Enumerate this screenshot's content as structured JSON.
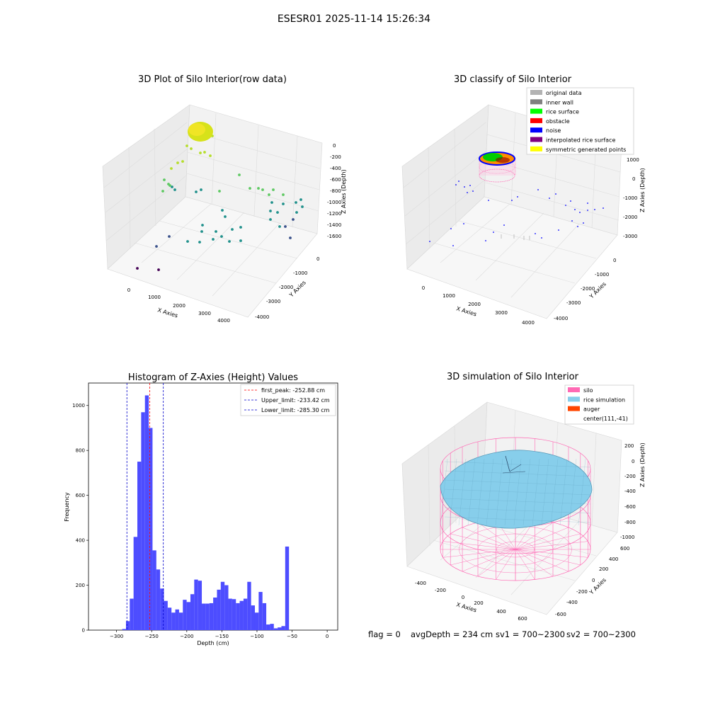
{
  "suptitle": "ESESR01 2025-11-14 15:26:34",
  "panels": {
    "p1": {
      "title": "3D Plot of Silo Interior(row data)",
      "xlabel": "X Axies",
      "ylabel": "Y Axies",
      "zlabel": "Z Axies (Depth)",
      "xticks": [
        "0",
        "1000",
        "2000",
        "3000",
        "4000"
      ],
      "yticks": [
        "0",
        "-1000",
        "-2000",
        "-3000",
        "-4000"
      ],
      "zticks": [
        "0",
        "-200",
        "-400",
        "-600",
        "-800",
        "-1000",
        "-1200",
        "-1400",
        "-1600"
      ]
    },
    "p2": {
      "title": "3D classify of Silo Interior",
      "xlabel": "X Axies",
      "ylabel": "Y Axies",
      "zlabel": "Z Axies (Depth)",
      "xticks": [
        "0",
        "1000",
        "2000",
        "3000",
        "4000"
      ],
      "yticks": [
        "0",
        "-1000",
        "-2000",
        "-3000",
        "-4000"
      ],
      "zticks": [
        "1000",
        "0",
        "-1000",
        "-2000",
        "-3000"
      ],
      "legend": [
        {
          "label": "original data",
          "color": "#b3b3b3"
        },
        {
          "label": "inner wall",
          "color": "#808080"
        },
        {
          "label": "rice surface",
          "color": "#00ff00"
        },
        {
          "label": "obstacle",
          "color": "#ff0000"
        },
        {
          "label": "noise",
          "color": "#0000ff"
        },
        {
          "label": "interpolated rice surface",
          "color": "#800080"
        },
        {
          "label": "symmetric generated points",
          "color": "#ffff00"
        }
      ]
    },
    "p4": {
      "title": "3D simulation of Silo Interior",
      "xlabel": "X Axies",
      "ylabel": "Y Axies",
      "zlabel": "Z Axies (Depth)",
      "xticks": [
        "-400",
        "-200",
        "0",
        "200",
        "400",
        "600"
      ],
      "yticks": [
        "600",
        "400",
        "200",
        "0",
        "-200",
        "-400",
        "-600"
      ],
      "zticks": [
        "200",
        "0",
        "-200",
        "-400",
        "-600",
        "-800",
        "-1000"
      ],
      "legend": [
        {
          "label": "silo",
          "color": "#ff69b4"
        },
        {
          "label": "rice simulation",
          "color": "#87ceeb"
        },
        {
          "label": "auger",
          "color": "#ff4500"
        },
        {
          "label": "center(111,-41)",
          "color": ""
        }
      ],
      "status": {
        "flag": "flag = 0",
        "avg": "avgDepth = 234 cm",
        "sv1": "sv1 = 700~2300",
        "sv2": "sv2 = 700~2300"
      }
    }
  },
  "colors": {
    "hist_bar": "#4d4dff",
    "peak_line": "#ff0000",
    "limit_line": "#0000cc",
    "silo": "#ff69b4",
    "rice": "#87ceeb"
  },
  "chart_data": [
    {
      "type": "scatter",
      "title": "3D Plot of Silo Interior(row data)",
      "xlabel": "X Axies",
      "ylabel": "Y Axies",
      "zlabel": "Z Axies (Depth)",
      "xlim": [
        -500,
        4500
      ],
      "ylim": [
        -4200,
        300
      ],
      "zlim": [
        -1700,
        100
      ],
      "note_points": "approximate point cloud, colored by depth (viridis)"
    },
    {
      "type": "scatter",
      "title": "3D classify of Silo Interior",
      "xlim": [
        -500,
        4500
      ],
      "ylim": [
        -4200,
        300
      ],
      "zlim": [
        -3500,
        1200
      ]
    },
    {
      "type": "bar",
      "title": "Histogram of Z-Axies (Height) Values",
      "xlabel": "Depth (cm)",
      "ylabel": "Frequency",
      "xlim": [
        -340,
        15
      ],
      "ylim": [
        0,
        1100
      ],
      "xticks": [
        -300,
        -250,
        -200,
        -150,
        -100,
        -50,
        0
      ],
      "yticks": [
        0,
        200,
        400,
        600,
        800,
        1000
      ],
      "bin_width": 5.4,
      "bin_start": -292,
      "values": [
        5,
        40,
        140,
        415,
        750,
        970,
        1045,
        900,
        355,
        270,
        185,
        130,
        100,
        78,
        92,
        78,
        135,
        125,
        160,
        225,
        220,
        118,
        118,
        120,
        145,
        180,
        215,
        200,
        140,
        138,
        120,
        130,
        140,
        215,
        110,
        78,
        170,
        120,
        25,
        28,
        8,
        12,
        18,
        372
      ],
      "lines": [
        {
          "label": "first_peak: -252.88 cm",
          "x": -252.88,
          "color": "#ff0000"
        },
        {
          "label": "Upper_limit: -233.42 cm",
          "x": -233.42,
          "color": "#0000cc"
        },
        {
          "label": "Lower_limit: -285.30 cm",
          "x": -285.3,
          "color": "#0000cc"
        }
      ]
    },
    {
      "type": "surface",
      "title": "3D simulation of Silo Interior",
      "xlim": [
        -500,
        700
      ],
      "ylim": [
        -700,
        700
      ],
      "zlim": [
        -1100,
        300
      ]
    }
  ]
}
